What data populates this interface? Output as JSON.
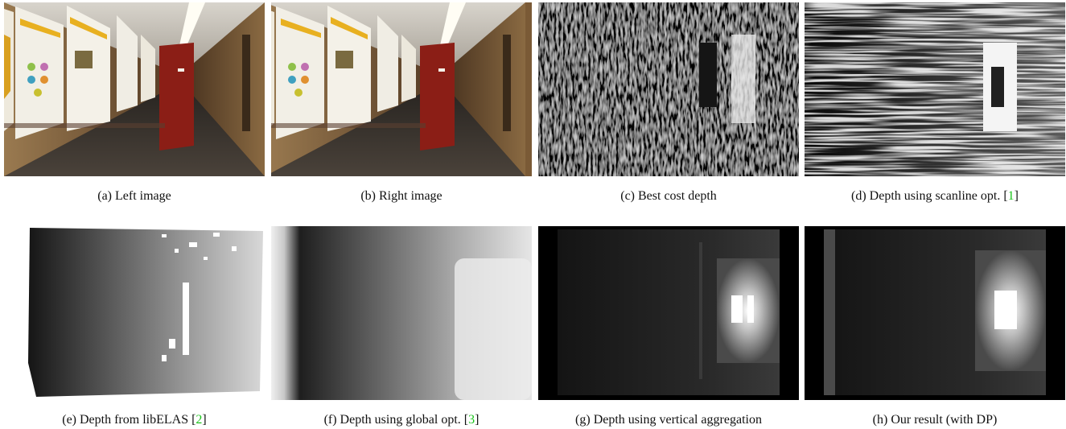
{
  "figure": {
    "panels": [
      {
        "label": "(a)",
        "caption": "Left image"
      },
      {
        "label": "(b)",
        "caption": "Right image"
      },
      {
        "label": "(c)",
        "caption": "Best cost depth"
      },
      {
        "label": "(d)",
        "caption": "Depth using scanline opt. [",
        "citation": "1",
        "caption_end": "]"
      },
      {
        "label": "(e)",
        "caption": "Depth from libELAS [",
        "citation": "2",
        "caption_end": "]"
      },
      {
        "label": "(f)",
        "caption": "Depth using global opt. [",
        "citation": "3",
        "caption_end": "]"
      },
      {
        "label": "(g)",
        "caption": "Depth using vertical aggregation"
      },
      {
        "label": "(h)",
        "caption": "Our result (with DP)"
      }
    ]
  }
}
